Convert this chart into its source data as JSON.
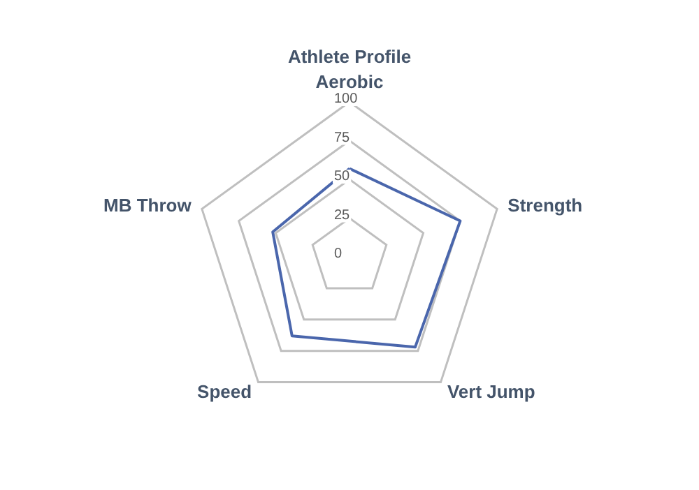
{
  "chart_data": {
    "type": "radar",
    "title": "Athlete Profile",
    "categories": [
      "Aerobic",
      "Strength",
      "Vert Jump",
      "Speed",
      "MB Throw"
    ],
    "series": [
      {
        "color": "#4a66ac",
        "values": [
          57,
          75,
          72,
          63,
          52
        ]
      }
    ],
    "ylim": [
      0,
      100
    ],
    "yticks": [
      0,
      25,
      50,
      75,
      100
    ],
    "grid": true,
    "marker": "none"
  }
}
